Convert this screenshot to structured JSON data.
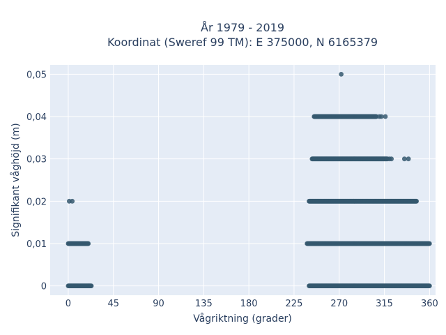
{
  "chart_data": {
    "type": "scatter",
    "title_line1": "År 1979 - 2019",
    "title_line2": "Koordinat (Sweref 99 TM): E 375000, N 6165379",
    "xlabel": "Vågriktning (grader)",
    "ylabel": "Signifikant våghöjd (m)",
    "xlim": [
      -18,
      366
    ],
    "ylim": [
      -0.0022,
      0.0522
    ],
    "x_ticks": [
      0,
      45,
      90,
      135,
      180,
      225,
      270,
      315,
      360
    ],
    "x_tick_labels": [
      "0",
      "45",
      "90",
      "135",
      "180",
      "225",
      "270",
      "315",
      "360"
    ],
    "y_ticks": [
      0,
      0.01,
      0.02,
      0.03,
      0.04,
      0.05
    ],
    "y_tick_labels": [
      "0",
      "0,01",
      "0,02",
      "0,03",
      "0,04",
      "0,05"
    ],
    "grid": true,
    "marker_color": "#35586f",
    "plot_bg": "#e5ecf6",
    "segments": [
      {
        "y": 0,
        "x_from": 0,
        "x_to": 23
      },
      {
        "y": 0,
        "x_from": 240,
        "x_to": 360
      },
      {
        "y": 0.01,
        "x_from": 0,
        "x_to": 20
      },
      {
        "y": 0.01,
        "x_from": 238,
        "x_to": 360
      },
      {
        "y": 0.02,
        "x_from": 240,
        "x_to": 347
      },
      {
        "y": 0.03,
        "x_from": 243,
        "x_to": 318
      },
      {
        "y": 0.04,
        "x_from": 245,
        "x_to": 307
      }
    ],
    "points": [
      {
        "x": 1,
        "y": 0.02
      },
      {
        "x": 4,
        "y": 0.02
      },
      {
        "x": 310,
        "y": 0.04
      },
      {
        "x": 312,
        "y": 0.04
      },
      {
        "x": 316,
        "y": 0.04
      },
      {
        "x": 320,
        "y": 0.03
      },
      {
        "x": 322,
        "y": 0.03
      },
      {
        "x": 335,
        "y": 0.03
      },
      {
        "x": 339,
        "y": 0.03
      },
      {
        "x": 272,
        "y": 0.05
      }
    ]
  }
}
